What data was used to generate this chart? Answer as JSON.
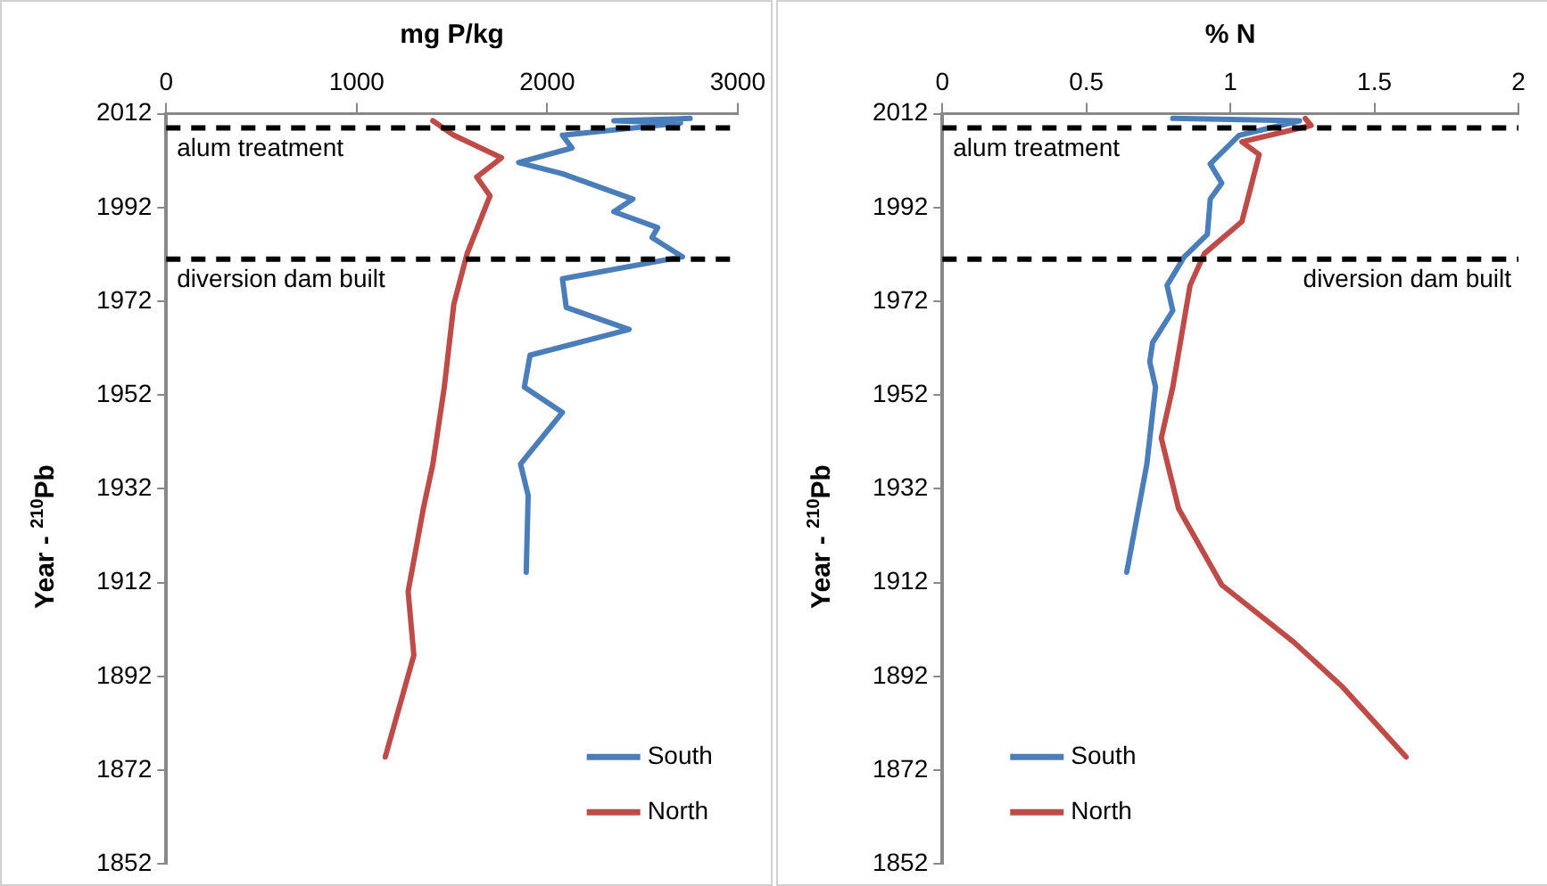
{
  "chart_data": [
    {
      "type": "line",
      "xlabel": "mg P/kg",
      "ylabel": "Year - $^{210}$Pb",
      "xlim": [
        0,
        3000
      ],
      "xticks": [
        0,
        1000,
        2000,
        3000
      ],
      "ylim": [
        1852,
        2012
      ],
      "yticks": [
        1852,
        1872,
        1892,
        1912,
        1932,
        1952,
        1972,
        1992,
        2012
      ],
      "grid": false,
      "legend": "bottom right",
      "marker": "none",
      "line_style": "solid",
      "ref_lines": [
        {
          "axis": "y",
          "value": 2009,
          "label": "alum treatment",
          "color": "#000000",
          "line_style": "dashed"
        },
        {
          "axis": "y",
          "value": 1981,
          "label": "diversion dam built",
          "color": "#000000",
          "line_style": "dashed"
        }
      ],
      "series": [
        {
          "name": "South",
          "color": "#4a7ebb",
          "x": [
            2750,
            2350,
            2700,
            2080,
            2130,
            1850,
            2080,
            2450,
            2350,
            2580,
            2550,
            2710,
            2080,
            2100,
            2430,
            1910,
            1880,
            2080,
            1860,
            1900,
            1890
          ],
          "values": [
            2011,
            2010.5,
            2010,
            2007.4,
            2004.7,
            2001.6,
            1999.2,
            1993.8,
            1991.1,
            1987.7,
            1985.6,
            1981.5,
            1976.8,
            1970.7,
            1966,
            1960.5,
            1953.7,
            1948.3,
            1937.3,
            1930.6,
            1914.2
          ]
        },
        {
          "name": "North",
          "color": "#be4b48",
          "x": [
            1400,
            1510,
            1760,
            1630,
            1700,
            1580,
            1510,
            1460,
            1400,
            1350,
            1270,
            1300,
            1150
          ],
          "values": [
            2010.5,
            2007.4,
            2002.6,
            1998.5,
            1994.5,
            1982.2,
            1971.4,
            1953.7,
            1937.3,
            1927.8,
            1910.1,
            1896.5,
            1874.8
          ]
        }
      ]
    },
    {
      "type": "line",
      "xlabel": "% N",
      "ylabel": "Year - $^{210}$Pb",
      "xlim": [
        0,
        2
      ],
      "xticks": [
        0,
        0.5,
        1,
        1.5,
        2
      ],
      "ylim": [
        1852,
        2012
      ],
      "yticks": [
        1852,
        1872,
        1892,
        1912,
        1932,
        1952,
        1972,
        1992,
        2012
      ],
      "grid": false,
      "legend": "bottom left",
      "marker": "none",
      "line_style": "solid",
      "ref_lines": [
        {
          "axis": "y",
          "value": 2009,
          "label": "alum treatment",
          "color": "#000000",
          "line_style": "dashed"
        },
        {
          "axis": "y",
          "value": 1981,
          "label": "diversion dam built",
          "color": "#000000",
          "line_style": "dashed"
        }
      ],
      "series": [
        {
          "name": "South",
          "color": "#4a7ebb",
          "x": [
            0.8,
            1.24,
            1.03,
            0.93,
            0.97,
            0.93,
            0.92,
            0.84,
            0.78,
            0.8,
            0.73,
            0.72,
            0.74,
            0.71,
            0.64
          ],
          "values": [
            2011,
            2010.5,
            2007.4,
            2001.3,
            1997.2,
            1993.8,
            1986.3,
            1981.5,
            1975.4,
            1970,
            1963.2,
            1959.1,
            1953.7,
            1937.3,
            1914.2
          ]
        },
        {
          "name": "North",
          "color": "#be4b48",
          "x": [
            1.26,
            1.28,
            1.04,
            1.1,
            1.08,
            1.04,
            0.91,
            0.86,
            0.8,
            0.76,
            0.82,
            0.97,
            1.22,
            1.39,
            1.61
          ],
          "values": [
            2011,
            2009.5,
            2006,
            2003.3,
            1998.5,
            1989,
            1982.2,
            1975.4,
            1953.7,
            1942.8,
            1927.8,
            1911.5,
            1899.3,
            1889.7,
            1874.8
          ]
        }
      ]
    }
  ]
}
